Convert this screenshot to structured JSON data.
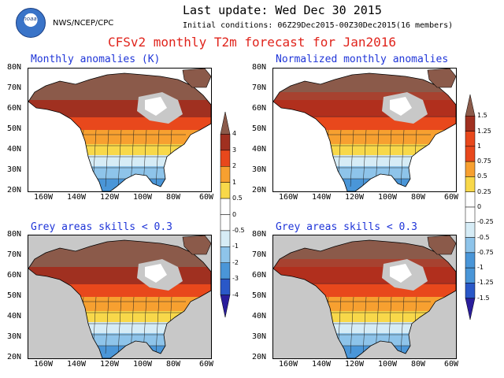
{
  "header": {
    "last_update": "Last update: Wed Dec 30 2015",
    "initial_conditions": "Initial conditions: 06Z29Dec2015-00Z30Dec2015(16 members)",
    "agency": "NWS/NCEP/CPC",
    "logo_text": "noaa",
    "main_title": "CFSv2 monthly T2m forecast for Jan2016"
  },
  "axes": {
    "lat_labels": [
      "80N",
      "70N",
      "60N",
      "50N",
      "40N",
      "30N",
      "20N"
    ],
    "lon_labels": [
      "160W",
      "140W",
      "120W",
      "100W",
      "80W",
      "60W"
    ]
  },
  "panels": [
    {
      "title": "Monthly anomalies (K)",
      "grey_mask": false
    },
    {
      "title": "Normalized monthly anomalies",
      "grey_mask": false
    },
    {
      "title": "Grey areas skills < 0.3",
      "grey_mask": true
    },
    {
      "title": "Grey areas skills < 0.3",
      "grey_mask": true
    }
  ],
  "colorbars": [
    {
      "labels": [
        "4",
        "3",
        "2",
        "1",
        "0.5",
        "0",
        "-0.5",
        "-1",
        "-2",
        "-3",
        "-4"
      ]
    },
    {
      "labels": [
        "1.5",
        "1.25",
        "1",
        "0.75",
        "0.5",
        "0.25",
        "0",
        "-0.25",
        "-0.5",
        "-0.75",
        "-1",
        "-1.25",
        "-1.5"
      ]
    }
  ],
  "colors": {
    "title_red": "#e0241c",
    "panel_blue": "#1f35d8",
    "brown": "#8b5a4a",
    "grey_mask": "#c8c8c8"
  }
}
